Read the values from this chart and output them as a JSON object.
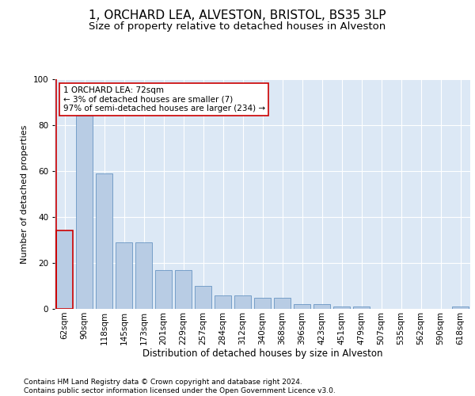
{
  "title": "1, ORCHARD LEA, ALVESTON, BRISTOL, BS35 3LP",
  "subtitle": "Size of property relative to detached houses in Alveston",
  "xlabel": "Distribution of detached houses by size in Alveston",
  "ylabel": "Number of detached properties",
  "categories": [
    "62sqm",
    "90sqm",
    "118sqm",
    "145sqm",
    "173sqm",
    "201sqm",
    "229sqm",
    "257sqm",
    "284sqm",
    "312sqm",
    "340sqm",
    "368sqm",
    "396sqm",
    "423sqm",
    "451sqm",
    "479sqm",
    "507sqm",
    "535sqm",
    "562sqm",
    "590sqm",
    "618sqm"
  ],
  "values": [
    34,
    84,
    59,
    29,
    29,
    17,
    17,
    10,
    6,
    6,
    5,
    5,
    2,
    2,
    1,
    1,
    0,
    0,
    0,
    0,
    1
  ],
  "bar_color": "#b8cce4",
  "bar_edgecolor": "#5588bb",
  "highlight_bar_index": 0,
  "highlight_bar_edgecolor": "#cc0000",
  "annotation_box_text": "1 ORCHARD LEA: 72sqm\n← 3% of detached houses are smaller (7)\n97% of semi-detached houses are larger (234) →",
  "ylim": [
    0,
    100
  ],
  "background_color": "#dce8f5",
  "grid_color": "#ffffff",
  "footer_text": "Contains HM Land Registry data © Crown copyright and database right 2024.\nContains public sector information licensed under the Open Government Licence v3.0.",
  "title_fontsize": 11,
  "subtitle_fontsize": 9.5,
  "xlabel_fontsize": 8.5,
  "ylabel_fontsize": 8,
  "tick_fontsize": 7.5,
  "annotation_fontsize": 7.5,
  "footer_fontsize": 6.5
}
